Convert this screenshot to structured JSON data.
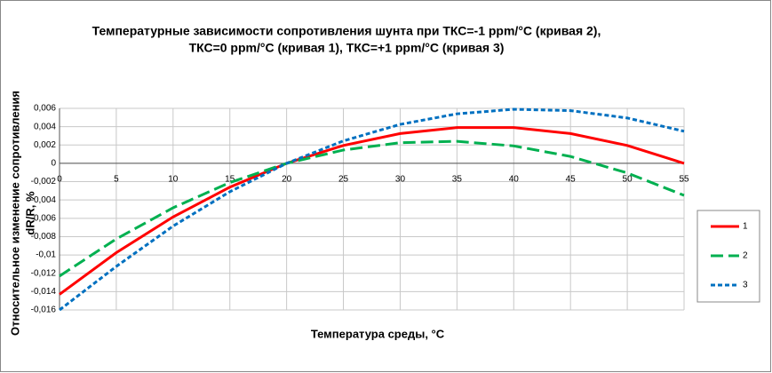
{
  "chart_data": {
    "type": "line",
    "title": [
      "Температурные зависимости сопротивления шунта при ТКС=-1 ppm/°C (кривая 2),",
      "ТКС=0 ppm/°C (кривая 1), ТКС=+1 ppm/°C (кривая 3)"
    ],
    "x_label": "Температура среды, °C",
    "y_label": [
      "Относительное изменение сопротивления",
      "dR/R, %"
    ],
    "x": [
      0,
      5,
      10,
      15,
      20,
      25,
      30,
      35,
      40,
      45,
      50,
      55
    ],
    "series": [
      {
        "name": "1",
        "color": "#ff0000",
        "dash": "solid",
        "values": [
          -0.0143,
          -0.00975,
          -0.00585,
          -0.0026,
          0,
          0.00195,
          0.00325,
          0.0039,
          0.0039,
          0.00325,
          0.00195,
          0
        ]
      },
      {
        "name": "2",
        "color": "#00b050",
        "dash": "dashed",
        "values": [
          -0.0123,
          -0.00825,
          -0.00485,
          -0.0021,
          0,
          0.00145,
          0.00225,
          0.0024,
          0.0019,
          0.00075,
          -0.00105,
          -0.0035
        ]
      },
      {
        "name": "3",
        "color": "#0070c0",
        "dash": "dotted",
        "values": [
          -0.016,
          -0.01125,
          -0.00685,
          -0.0031,
          0,
          0.00245,
          0.00425,
          0.0054,
          0.0059,
          0.00575,
          0.00495,
          0.0035
        ]
      }
    ],
    "xlim": [
      0,
      55
    ],
    "xticks": [
      0,
      5,
      10,
      15,
      20,
      25,
      30,
      35,
      40,
      45,
      50,
      55
    ],
    "ylim": [
      -0.016,
      0.006
    ],
    "yticks": [
      {
        "value": -0.016,
        "label": "-0,016"
      },
      {
        "value": -0.014,
        "label": "-0,014"
      },
      {
        "value": -0.012,
        "label": "-0,012"
      },
      {
        "value": -0.01,
        "label": "-0,01"
      },
      {
        "value": -0.008,
        "label": "-0,008"
      },
      {
        "value": -0.006,
        "label": "-0,006"
      },
      {
        "value": -0.004,
        "label": "-0,004"
      },
      {
        "value": -0.002,
        "label": "-0,002"
      },
      0,
      {
        "value": 0.002,
        "label": "0,002"
      },
      {
        "value": 0.004,
        "label": "0,004"
      },
      {
        "value": 0.006,
        "label": "0,006"
      }
    ],
    "grid": true,
    "legend": "right"
  }
}
